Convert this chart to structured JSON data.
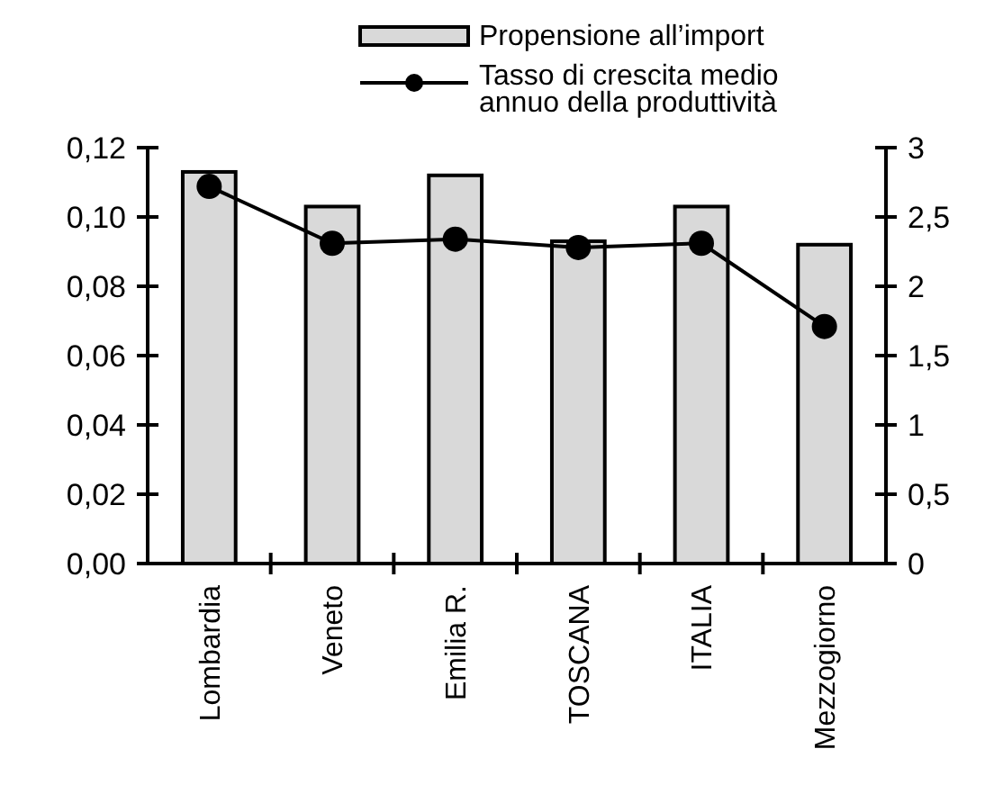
{
  "chart_data": {
    "type": "bar",
    "categories": [
      "Lombardia",
      "Veneto",
      "Emilia R.",
      "TOSCANA",
      "ITALIA",
      "Mezzogiorno"
    ],
    "series": [
      {
        "name": "Propensione all’import",
        "color": "#d9d9d9",
        "values": [
          0.113,
          0.103,
          0.112,
          0.093,
          0.103,
          0.092
        ]
      },
      {
        "name": "Tasso di crescita medio annuo della produttività",
        "type": "line",
        "axis": "y2",
        "color": "#000000",
        "values": [
          2.72,
          2.31,
          2.34,
          2.28,
          2.31,
          1.71
        ]
      }
    ],
    "ylim": [
      0,
      0.12
    ],
    "yticks": [
      {
        "value": 0,
        "label": "0,00"
      },
      {
        "value": 0.02,
        "label": "0,02"
      },
      {
        "value": 0.04,
        "label": "0,04"
      },
      {
        "value": 0.06,
        "label": "0,06"
      },
      {
        "value": 0.08,
        "label": "0,08"
      },
      {
        "value": 0.1,
        "label": "0,10"
      },
      {
        "value": 0.12,
        "label": "0,12"
      }
    ],
    "y2lim": [
      0,
      3
    ],
    "y2ticks": [
      0,
      {
        "value": 0.5,
        "label": "0,5"
      },
      1,
      {
        "value": 1.5,
        "label": "1,5"
      },
      2,
      {
        "value": 2.5,
        "label": "2,5"
      },
      3
    ],
    "grid": false,
    "legend": "top",
    "marker": "circle",
    "line_style": "solid"
  }
}
